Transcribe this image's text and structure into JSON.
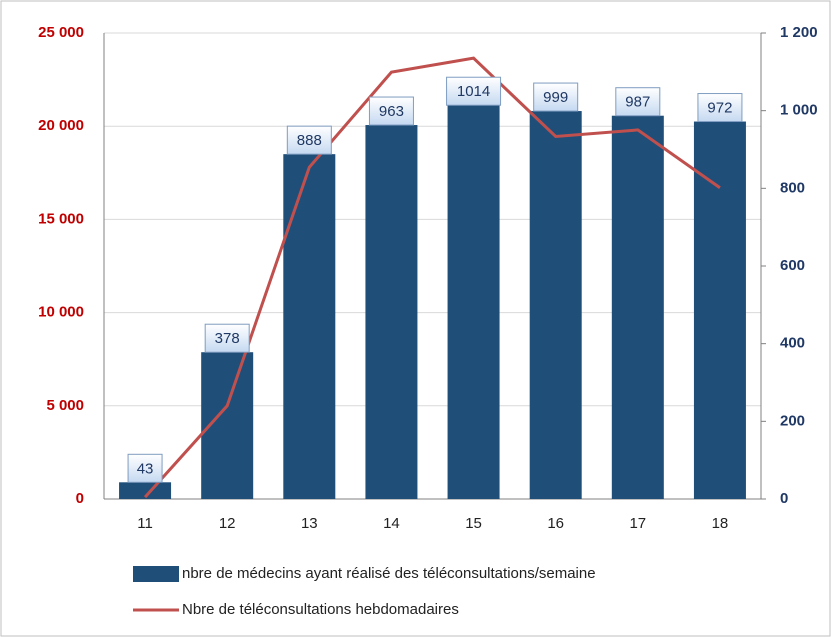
{
  "chart_data": {
    "type": "bar",
    "categories": [
      "11",
      "12",
      "13",
      "14",
      "15",
      "16",
      "17",
      "18"
    ],
    "series": [
      {
        "name": "nbre de médecins ayant réalisé des téléconsultations/semaine",
        "type": "bar",
        "axis": "y2",
        "color": "#1f4e79",
        "values": [
          43,
          378,
          888,
          963,
          1014,
          999,
          987,
          972
        ]
      },
      {
        "name": "Nbre de téléconsultations hebdomadaires",
        "type": "line",
        "axis": "y",
        "color": "#c0504d",
        "values": [
          100,
          5000,
          17800,
          22900,
          23650,
          19450,
          19800,
          16700
        ]
      }
    ],
    "ylim": [
      0,
      25000
    ],
    "yticks": [
      0,
      {
        "value": 5000,
        "label": "5 000"
      },
      {
        "value": 10000,
        "label": "10 000"
      },
      {
        "value": 15000,
        "label": "15 000"
      },
      {
        "value": 20000,
        "label": "20 000"
      },
      {
        "value": 25000,
        "label": "25 000"
      }
    ],
    "y2lim": [
      0,
      1200
    ],
    "y2ticks": [
      0,
      200,
      400,
      600,
      800,
      {
        "value": 1000,
        "label": "1 000"
      },
      {
        "value": 1200,
        "label": "1 200"
      }
    ],
    "grid": true,
    "legend": "bottom"
  }
}
